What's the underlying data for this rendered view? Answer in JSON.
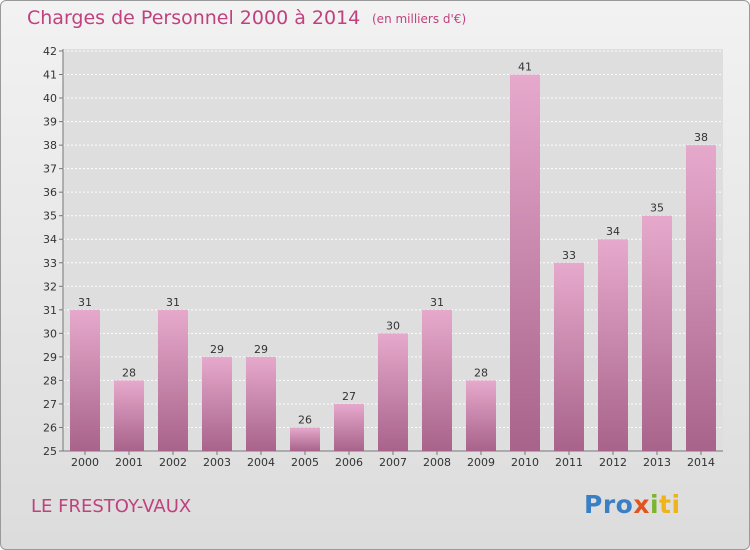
{
  "header": {
    "title": "Charges de Personnel 2000 à 2014",
    "subtitle": "(en milliers d'€)"
  },
  "footer": {
    "commune": "LE FRESTOY-VAUX",
    "logo": [
      "Pro",
      "x",
      "i",
      "ti"
    ]
  },
  "colors": {
    "accent": "#c0417f",
    "bar_light": "#e6a9cc",
    "bar_dark": "#a8638a"
  },
  "chart_data": {
    "type": "bar",
    "title": "Charges de Personnel 2000 à 2014",
    "subtitle": "(en milliers d'€)",
    "xlabel": "",
    "ylabel": "",
    "categories": [
      "2000",
      "2001",
      "2002",
      "2003",
      "2004",
      "2005",
      "2006",
      "2007",
      "2008",
      "2009",
      "2010",
      "2011",
      "2012",
      "2013",
      "2014"
    ],
    "values": [
      31,
      28,
      31,
      29,
      29,
      26,
      27,
      30,
      31,
      28,
      41,
      33,
      34,
      35,
      38
    ],
    "ylim": [
      25,
      42
    ],
    "yticks": [
      25,
      26,
      27,
      28,
      29,
      30,
      31,
      32,
      33,
      34,
      35,
      36,
      37,
      38,
      39,
      40,
      41,
      42
    ],
    "grid": true
  }
}
